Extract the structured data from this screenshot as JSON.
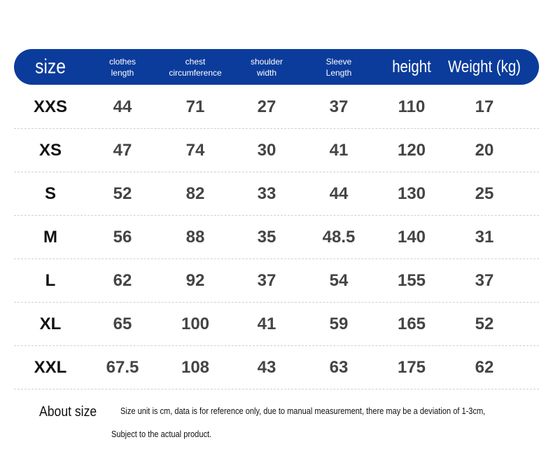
{
  "table": {
    "header": [
      [
        "size"
      ],
      [
        "clothes",
        "length"
      ],
      [
        "chest",
        "circumference"
      ],
      [
        "shoulder",
        "width"
      ],
      [
        "Sleeve",
        "Length"
      ],
      [
        "height"
      ],
      [
        "Weight (kg)"
      ]
    ],
    "rows": [
      [
        "XXS",
        "44",
        "71",
        "27",
        "37",
        "110",
        "17"
      ],
      [
        "XS",
        "47",
        "74",
        "30",
        "41",
        "120",
        "20"
      ],
      [
        "S",
        "52",
        "82",
        "33",
        "44",
        "130",
        "25"
      ],
      [
        "M",
        "56",
        "88",
        "35",
        "48.5",
        "140",
        "31"
      ],
      [
        "L",
        "62",
        "92",
        "37",
        "54",
        "155",
        "37"
      ],
      [
        "XL",
        "65",
        "100",
        "41",
        "59",
        "165",
        "52"
      ],
      [
        "XXL",
        "67.5",
        "108",
        "43",
        "63",
        "175",
        "62"
      ]
    ]
  },
  "footer": {
    "label": "About size",
    "note": [
      "Size unit is cm, data is for reference only, due to manual measurement, there may be a deviation of 1-3cm,",
      "Subject to the actual product."
    ]
  }
}
